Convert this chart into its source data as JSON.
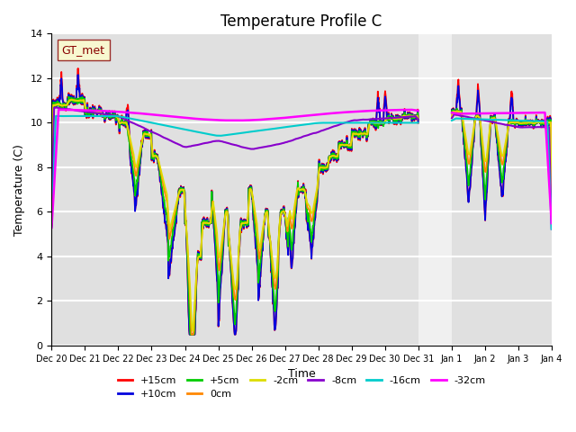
{
  "title": "Temperature Profile C",
  "xlabel": "Time",
  "ylabel": "Temperature (C)",
  "ylim": [
    0,
    14
  ],
  "x_tick_labels": [
    "Dec 20",
    "Dec 21",
    "Dec 22",
    "Dec 23",
    "Dec 24",
    "Dec 25",
    "Dec 26",
    "Dec 27",
    "Dec 28",
    "Dec 29",
    "Dec 30",
    "Dec 31",
    "Jan 1",
    "Jan 2",
    "Jan 3",
    "Jan 4"
  ],
  "series": [
    {
      "label": "+15cm",
      "color": "#ff0000"
    },
    {
      "label": "+10cm",
      "color": "#0000dd"
    },
    {
      "label": "+5cm",
      "color": "#00cc00"
    },
    {
      "label": "0cm",
      "color": "#ff8800"
    },
    {
      "label": "-2cm",
      "color": "#dddd00"
    },
    {
      "label": "-8cm",
      "color": "#8800cc"
    },
    {
      "label": "-16cm",
      "color": "#00cccc"
    },
    {
      "label": "-32cm",
      "color": "#ff00ff"
    }
  ],
  "legend_label": "GT_met",
  "plot_bg": "#e0e0e0",
  "fig_bg": "#ffffff",
  "gap_bg": "#f0f0f0",
  "title_fontsize": 12,
  "axis_label_fontsize": 9,
  "tick_fontsize": 8,
  "legend_fontsize": 8
}
